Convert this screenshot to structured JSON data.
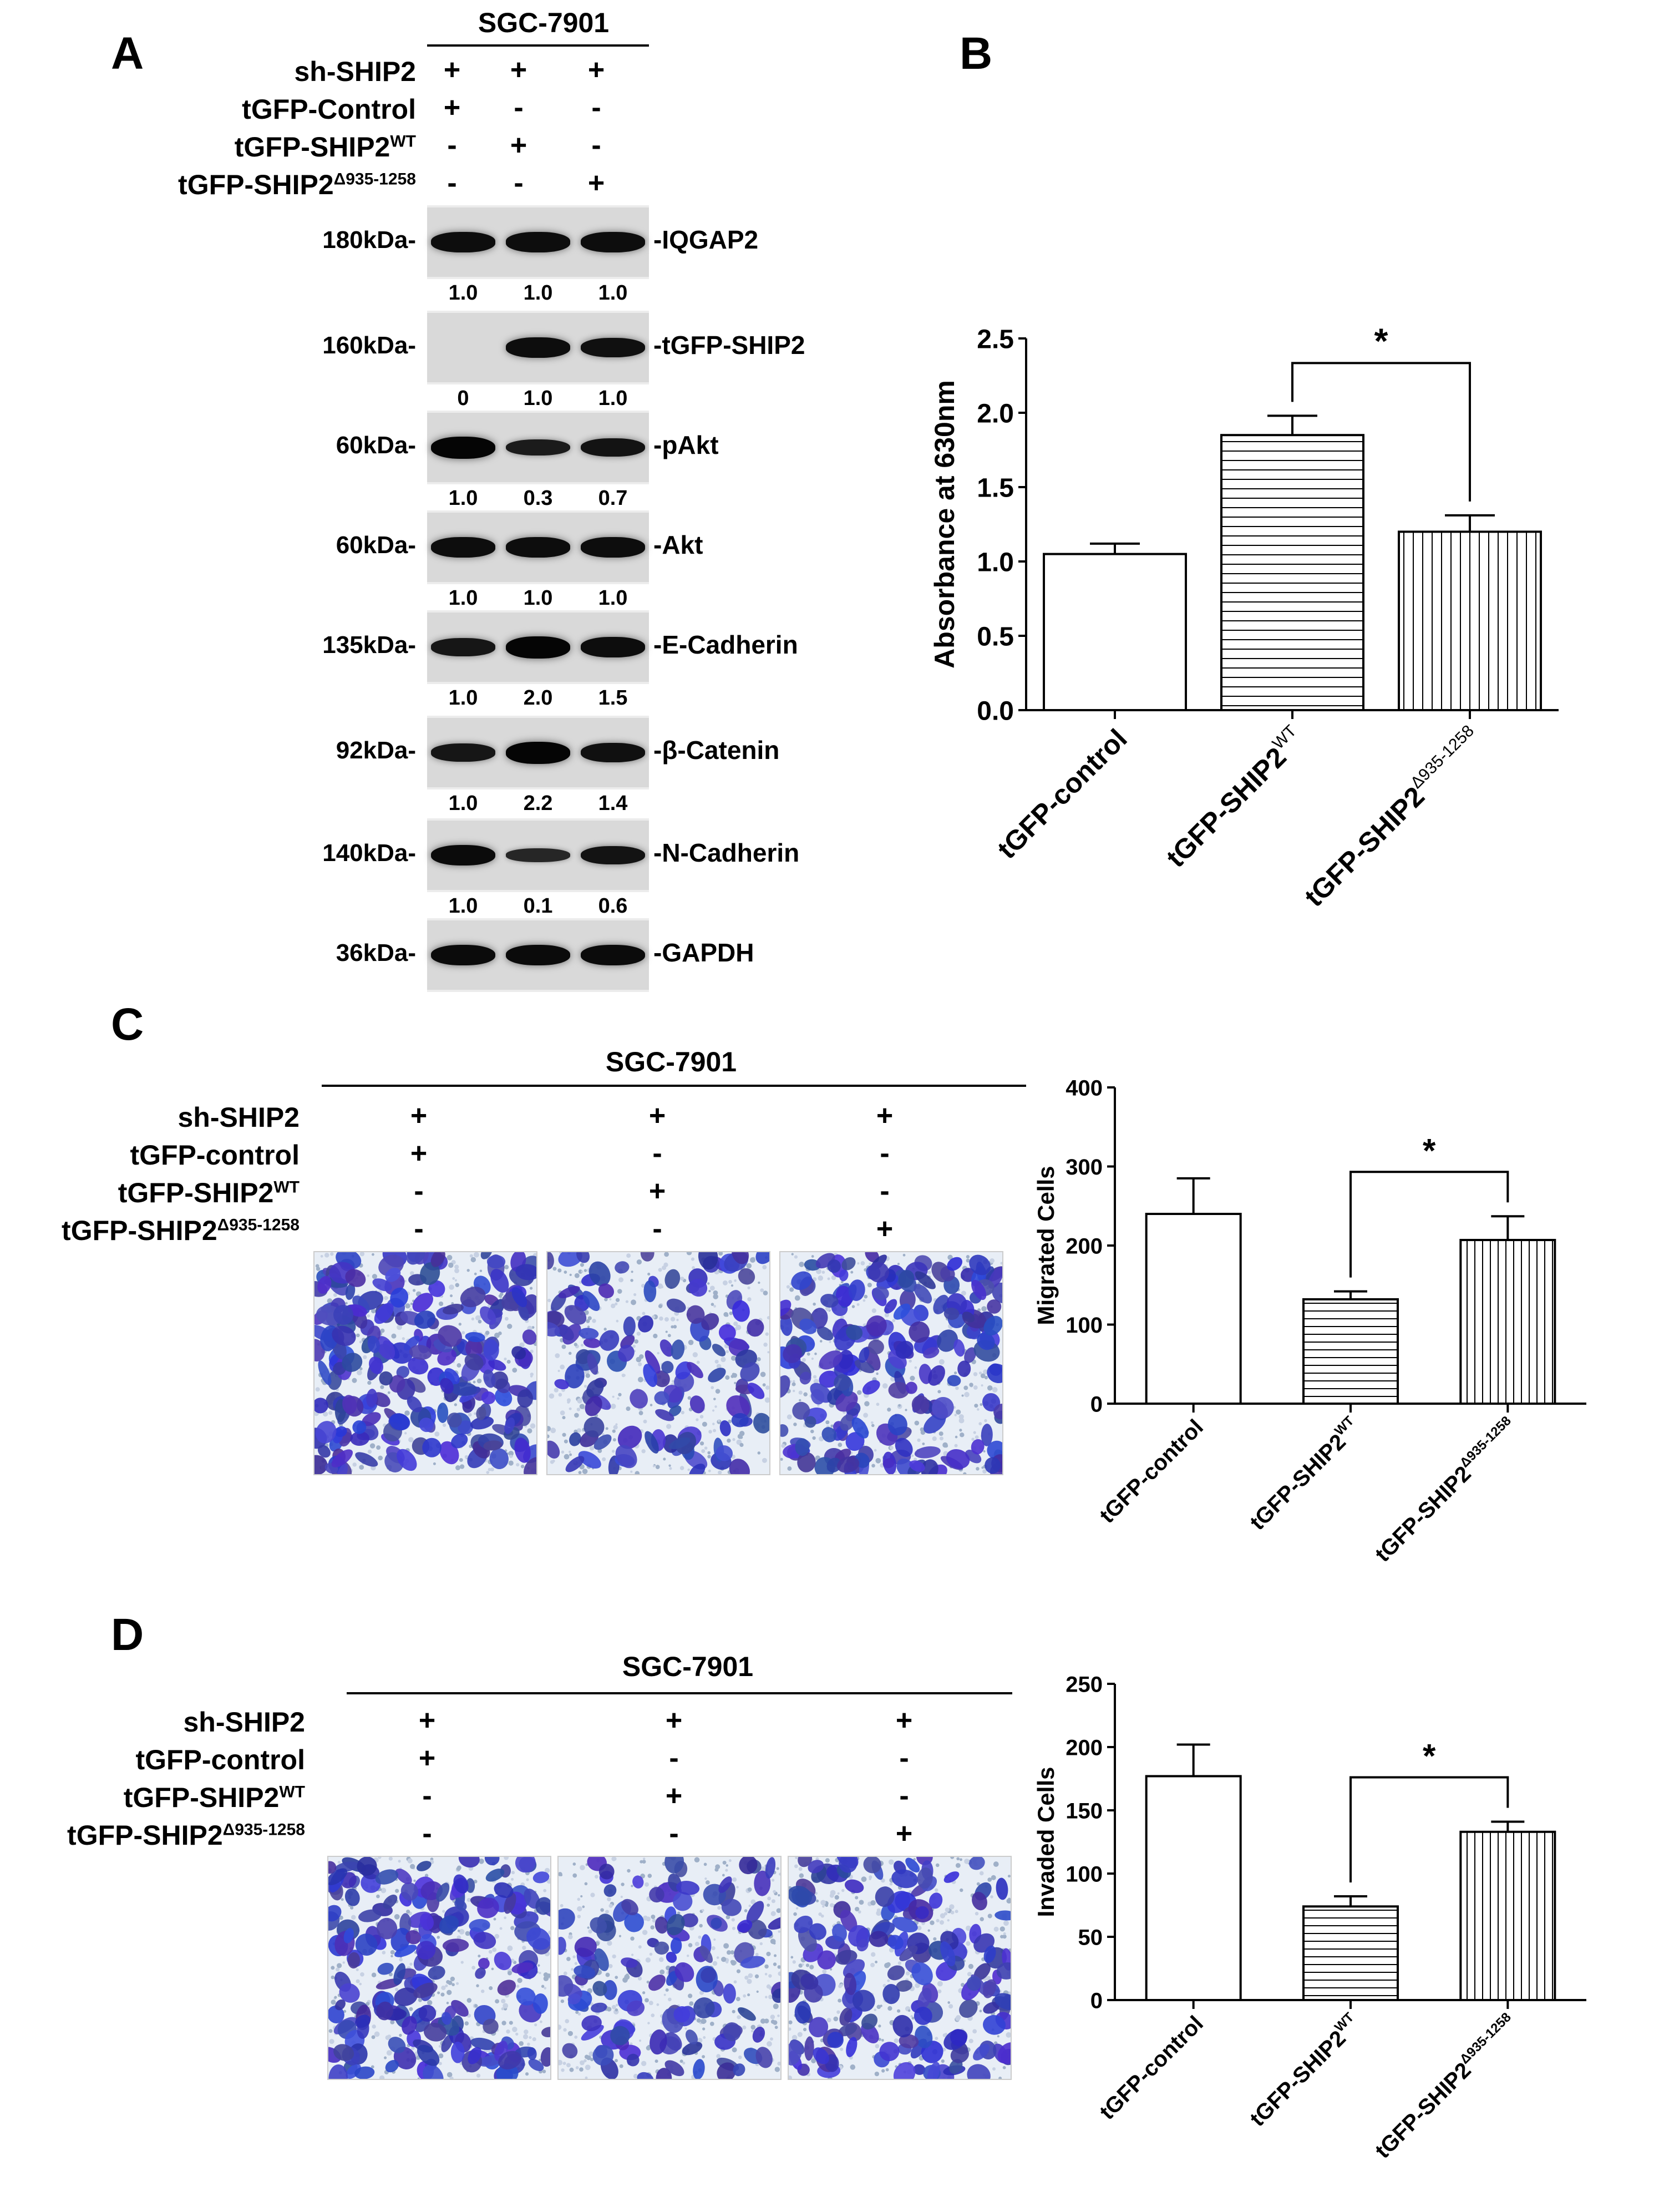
{
  "panel_A": {
    "letter": "A",
    "cell_line": "SGC-7901",
    "conditions": [
      {
        "label": "sh-SHIP2",
        "signs": [
          "+",
          "+",
          "+"
        ]
      },
      {
        "label": "tGFP-Control",
        "signs": [
          "+",
          "-",
          "-"
        ]
      },
      {
        "label": "tGFP-SHIP2",
        "sup": "WT",
        "signs": [
          "-",
          "+",
          "-"
        ]
      },
      {
        "label": "tGFP-SHIP2",
        "sup": "Δ935-1258",
        "signs": [
          "-",
          "-",
          "+"
        ]
      }
    ],
    "blots": [
      {
        "mw": "180kDa-",
        "name": "-IQGAP2",
        "quant": [
          "1.0",
          "1.0",
          "1.0"
        ],
        "intensity": [
          0.85,
          0.85,
          0.85
        ]
      },
      {
        "mw": "160kDa-",
        "name": "-tGFP-SHIP2",
        "quant": [
          "0",
          "1.0",
          "1.0"
        ],
        "intensity": [
          0.0,
          0.85,
          0.8
        ]
      },
      {
        "mw": "60kDa-",
        "name": "-pAkt",
        "quant": [
          "1.0",
          "0.3",
          "0.7"
        ],
        "intensity": [
          1.0,
          0.6,
          0.75
        ]
      },
      {
        "mw": "60kDa-",
        "name": "-Akt",
        "quant": [
          "1.0",
          "1.0",
          "1.0"
        ],
        "intensity": [
          0.85,
          0.85,
          0.85
        ]
      },
      {
        "mw": "135kDa-",
        "name": "-E-Cadherin",
        "quant": [
          "1.0",
          "2.0",
          "1.5"
        ],
        "intensity": [
          0.7,
          1.0,
          0.85
        ]
      },
      {
        "mw": "92kDa-",
        "name": "-β-Catenin",
        "quant": [
          "1.0",
          "2.2",
          "1.4"
        ],
        "intensity": [
          0.7,
          1.0,
          0.8
        ]
      },
      {
        "mw": "140kDa-",
        "name": "-N-Cadherin",
        "quant": [
          "1.0",
          "0.1",
          "0.6"
        ],
        "intensity": [
          0.9,
          0.4,
          0.75
        ]
      },
      {
        "mw": "36kDa-",
        "name": "-GAPDH",
        "quant": null,
        "intensity": [
          0.9,
          0.9,
          0.9
        ]
      }
    ]
  },
  "panel_B": {
    "letter": "B"
  },
  "panel_C": {
    "letter": "C",
    "cell_line": "SGC-7901",
    "conditions": [
      {
        "label": "sh-SHIP2",
        "signs": [
          "+",
          "+",
          "+"
        ]
      },
      {
        "label": "tGFP-control",
        "signs": [
          "+",
          "-",
          "-"
        ]
      },
      {
        "label": "tGFP-SHIP2",
        "sup": "WT",
        "signs": [
          "-",
          "+",
          "-"
        ]
      },
      {
        "label": "tGFP-SHIP2",
        "sup": "Δ935-1258",
        "signs": [
          "-",
          "-",
          "+"
        ]
      }
    ],
    "micrograph_density": [
      0.85,
      0.45,
      0.75
    ]
  },
  "panel_D": {
    "letter": "D",
    "cell_line": "SGC-7901",
    "conditions": [
      {
        "label": "sh-SHIP2",
        "signs": [
          "+",
          "+",
          "+"
        ]
      },
      {
        "label": "tGFP-control",
        "signs": [
          "+",
          "-",
          "-"
        ]
      },
      {
        "label": "tGFP-SHIP2",
        "sup": "WT",
        "signs": [
          "-",
          "+",
          "-"
        ]
      },
      {
        "label": "tGFP-SHIP2",
        "sup": "Δ935-1258",
        "signs": [
          "-",
          "-",
          "+"
        ]
      }
    ],
    "micrograph_density": [
      0.7,
      0.45,
      0.6
    ]
  },
  "chart_data": [
    {
      "panel": "B",
      "type": "bar",
      "categories": [
        "tGFP-control",
        "tGFP-SHIP2",
        "tGFP-SHIP2"
      ],
      "category_sups": [
        "",
        "WT",
        "Δ935-1258"
      ],
      "values": [
        1.05,
        1.85,
        1.2
      ],
      "errors": [
        0.07,
        0.13,
        0.11
      ],
      "patterns": [
        "none",
        "horizontal",
        "vertical"
      ],
      "ylabel": "Absorbance at 630nm",
      "ylim": [
        0,
        2.5
      ],
      "yticks": [
        0.0,
        0.5,
        1.0,
        1.5,
        2.0,
        2.5
      ],
      "ytick_labels": [
        "0.0",
        "0.5",
        "1.0",
        "1.5",
        "2.0",
        "2.5"
      ],
      "significance": {
        "between": [
          1,
          2
        ],
        "label": "*"
      }
    },
    {
      "panel": "C",
      "type": "bar",
      "categories": [
        "tGFP-control",
        "tGFP-SHIP2",
        "tGFP-SHIP2"
      ],
      "category_sups": [
        "",
        "WT",
        "Δ935-1258"
      ],
      "values": [
        240,
        132,
        207
      ],
      "errors": [
        45,
        10,
        30
      ],
      "patterns": [
        "none",
        "horizontal",
        "vertical"
      ],
      "ylabel": "Migrated Cells",
      "ylim": [
        0,
        400
      ],
      "yticks": [
        0,
        100,
        200,
        300,
        400
      ],
      "ytick_labels": [
        "0",
        "100",
        "200",
        "300",
        "400"
      ],
      "significance": {
        "between": [
          1,
          2
        ],
        "label": "*"
      }
    },
    {
      "panel": "D",
      "type": "bar",
      "categories": [
        "tGFP-control",
        "tGFP-SHIP2",
        "tGFP-SHIP2"
      ],
      "category_sups": [
        "",
        "WT",
        "Δ935-1258"
      ],
      "values": [
        177,
        74,
        133
      ],
      "errors": [
        25,
        8,
        8
      ],
      "patterns": [
        "none",
        "horizontal",
        "vertical"
      ],
      "ylabel": "Invaded Cells",
      "ylim": [
        0,
        250
      ],
      "yticks": [
        0,
        50,
        100,
        150,
        200,
        250
      ],
      "ytick_labels": [
        "0",
        "50",
        "100",
        "150",
        "200",
        "250"
      ],
      "significance": {
        "between": [
          1,
          2
        ],
        "label": "*"
      }
    }
  ]
}
